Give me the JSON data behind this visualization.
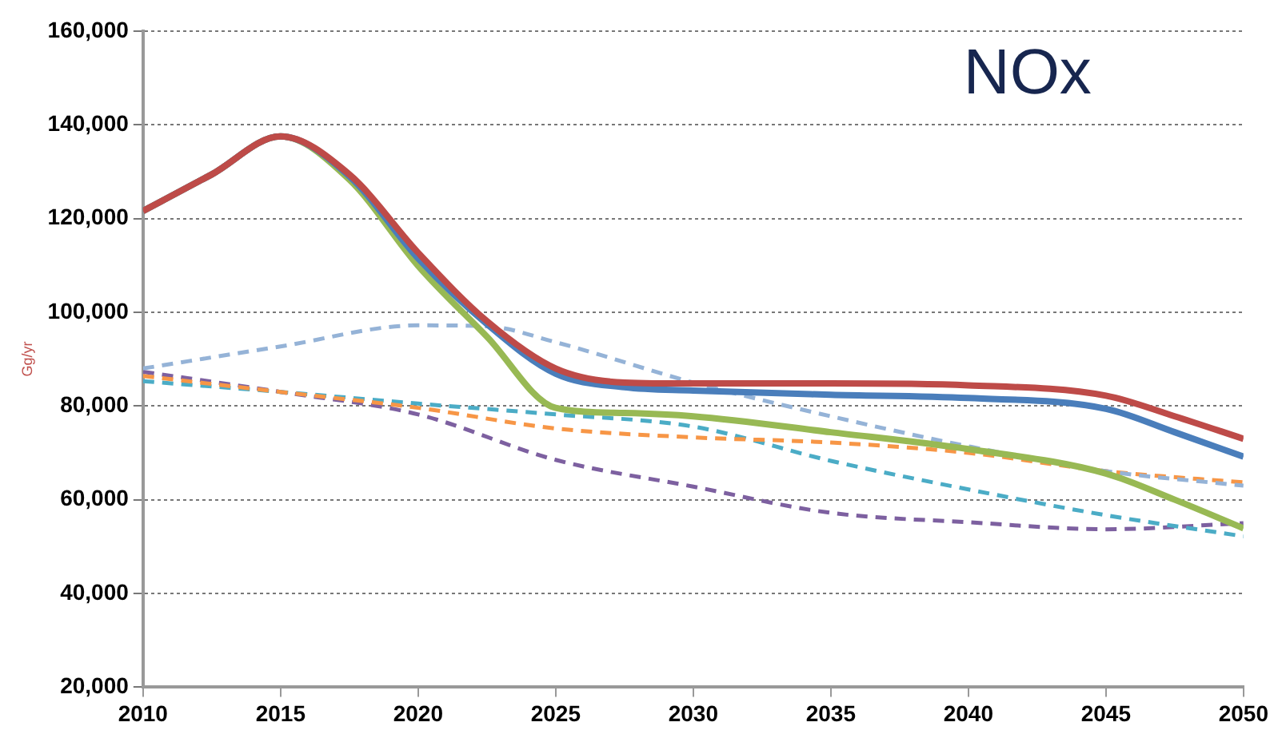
{
  "chart_data": {
    "type": "line",
    "title": "NOx",
    "ylabel": "Gg/yr",
    "xlim": [
      2010,
      2050
    ],
    "xticks": [
      2010,
      2015,
      2020,
      2025,
      2030,
      2035,
      2040,
      2045,
      2050
    ],
    "ylim": [
      20000,
      160000
    ],
    "yticks": [
      {
        "value": 20000,
        "label": "20,000"
      },
      {
        "value": 40000,
        "label": "40,000"
      },
      {
        "value": 60000,
        "label": "60,000"
      },
      {
        "value": 80000,
        "label": "80,000"
      },
      {
        "value": 100000,
        "label": "100,000"
      },
      {
        "value": 120000,
        "label": "120,000"
      },
      {
        "value": 140000,
        "label": "140,000"
      },
      {
        "value": 160000,
        "label": "160,000"
      }
    ],
    "grid": "y",
    "legend": false,
    "marker": "none",
    "x": [
      2010,
      2012.5,
      2015,
      2017.5,
      2020,
      2022.5,
      2025,
      2027.5,
      2030,
      2035,
      2040,
      2045,
      2047.5,
      2050
    ],
    "series": [
      {
        "color": "#be4b48",
        "line_style": "solid",
        "values": [
          121600,
          129400,
          137500,
          129400,
          112700,
          98100,
          88000,
          85000,
          84800,
          84800,
          84400,
          82200,
          77800,
          73000
        ]
      },
      {
        "color": "#4a7ebb",
        "line_style": "solid",
        "values": [
          121600,
          129400,
          137500,
          129000,
          111500,
          97500,
          86900,
          84000,
          83300,
          82400,
          81700,
          79400,
          74400,
          69200
        ]
      },
      {
        "color": "#98b954",
        "line_style": "solid",
        "values": [
          121600,
          129400,
          137500,
          128300,
          109900,
          94800,
          79600,
          78500,
          77800,
          74400,
          70800,
          65600,
          60000,
          53900
        ]
      },
      {
        "color": "#95b3d7",
        "line_style": "dashed",
        "x": [
          2010,
          2015,
          2020,
          2022.5,
          2025,
          2030,
          2035,
          2040,
          2045,
          2050
        ],
        "values": [
          88000,
          92700,
          97200,
          97000,
          93600,
          85000,
          77800,
          71400,
          66100,
          63000
        ]
      },
      {
        "color": "#f79646",
        "line_style": "dashed",
        "x": [
          2010,
          2015,
          2020,
          2025,
          2030,
          2035,
          2040,
          2045,
          2050
        ],
        "values": [
          86400,
          83000,
          79600,
          75200,
          73300,
          72200,
          70000,
          66100,
          63700
        ]
      },
      {
        "color": "#4bacc6",
        "line_style": "dashed",
        "x": [
          2010,
          2015,
          2020,
          2025,
          2030,
          2035,
          2040,
          2045,
          2050
        ],
        "values": [
          85300,
          83000,
          80500,
          78200,
          75600,
          68300,
          62200,
          56700,
          52200
        ]
      },
      {
        "color": "#7d60a0",
        "line_style": "dashed",
        "x": [
          2010,
          2015,
          2020,
          2025,
          2030,
          2035,
          2040,
          2045,
          2050
        ],
        "values": [
          87300,
          83000,
          78200,
          68500,
          62800,
          57200,
          55200,
          53700,
          55000
        ]
      }
    ]
  }
}
